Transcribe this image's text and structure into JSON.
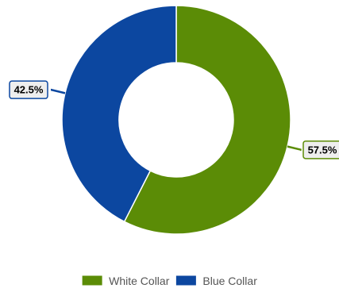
{
  "chart_data": {
    "type": "pie",
    "variant": "donut",
    "title": "",
    "categories": [
      "White Collar",
      "Blue Collar"
    ],
    "values": [
      57.5,
      42.5
    ],
    "value_labels": [
      "57.5%",
      "42.5%"
    ],
    "colors": [
      "#5b8c06",
      "#0c47a0"
    ],
    "label_box_color": "#eeeeee",
    "legend": {
      "placement": "bottom-center",
      "items": [
        "White Collar",
        "Blue Collar"
      ]
    }
  }
}
